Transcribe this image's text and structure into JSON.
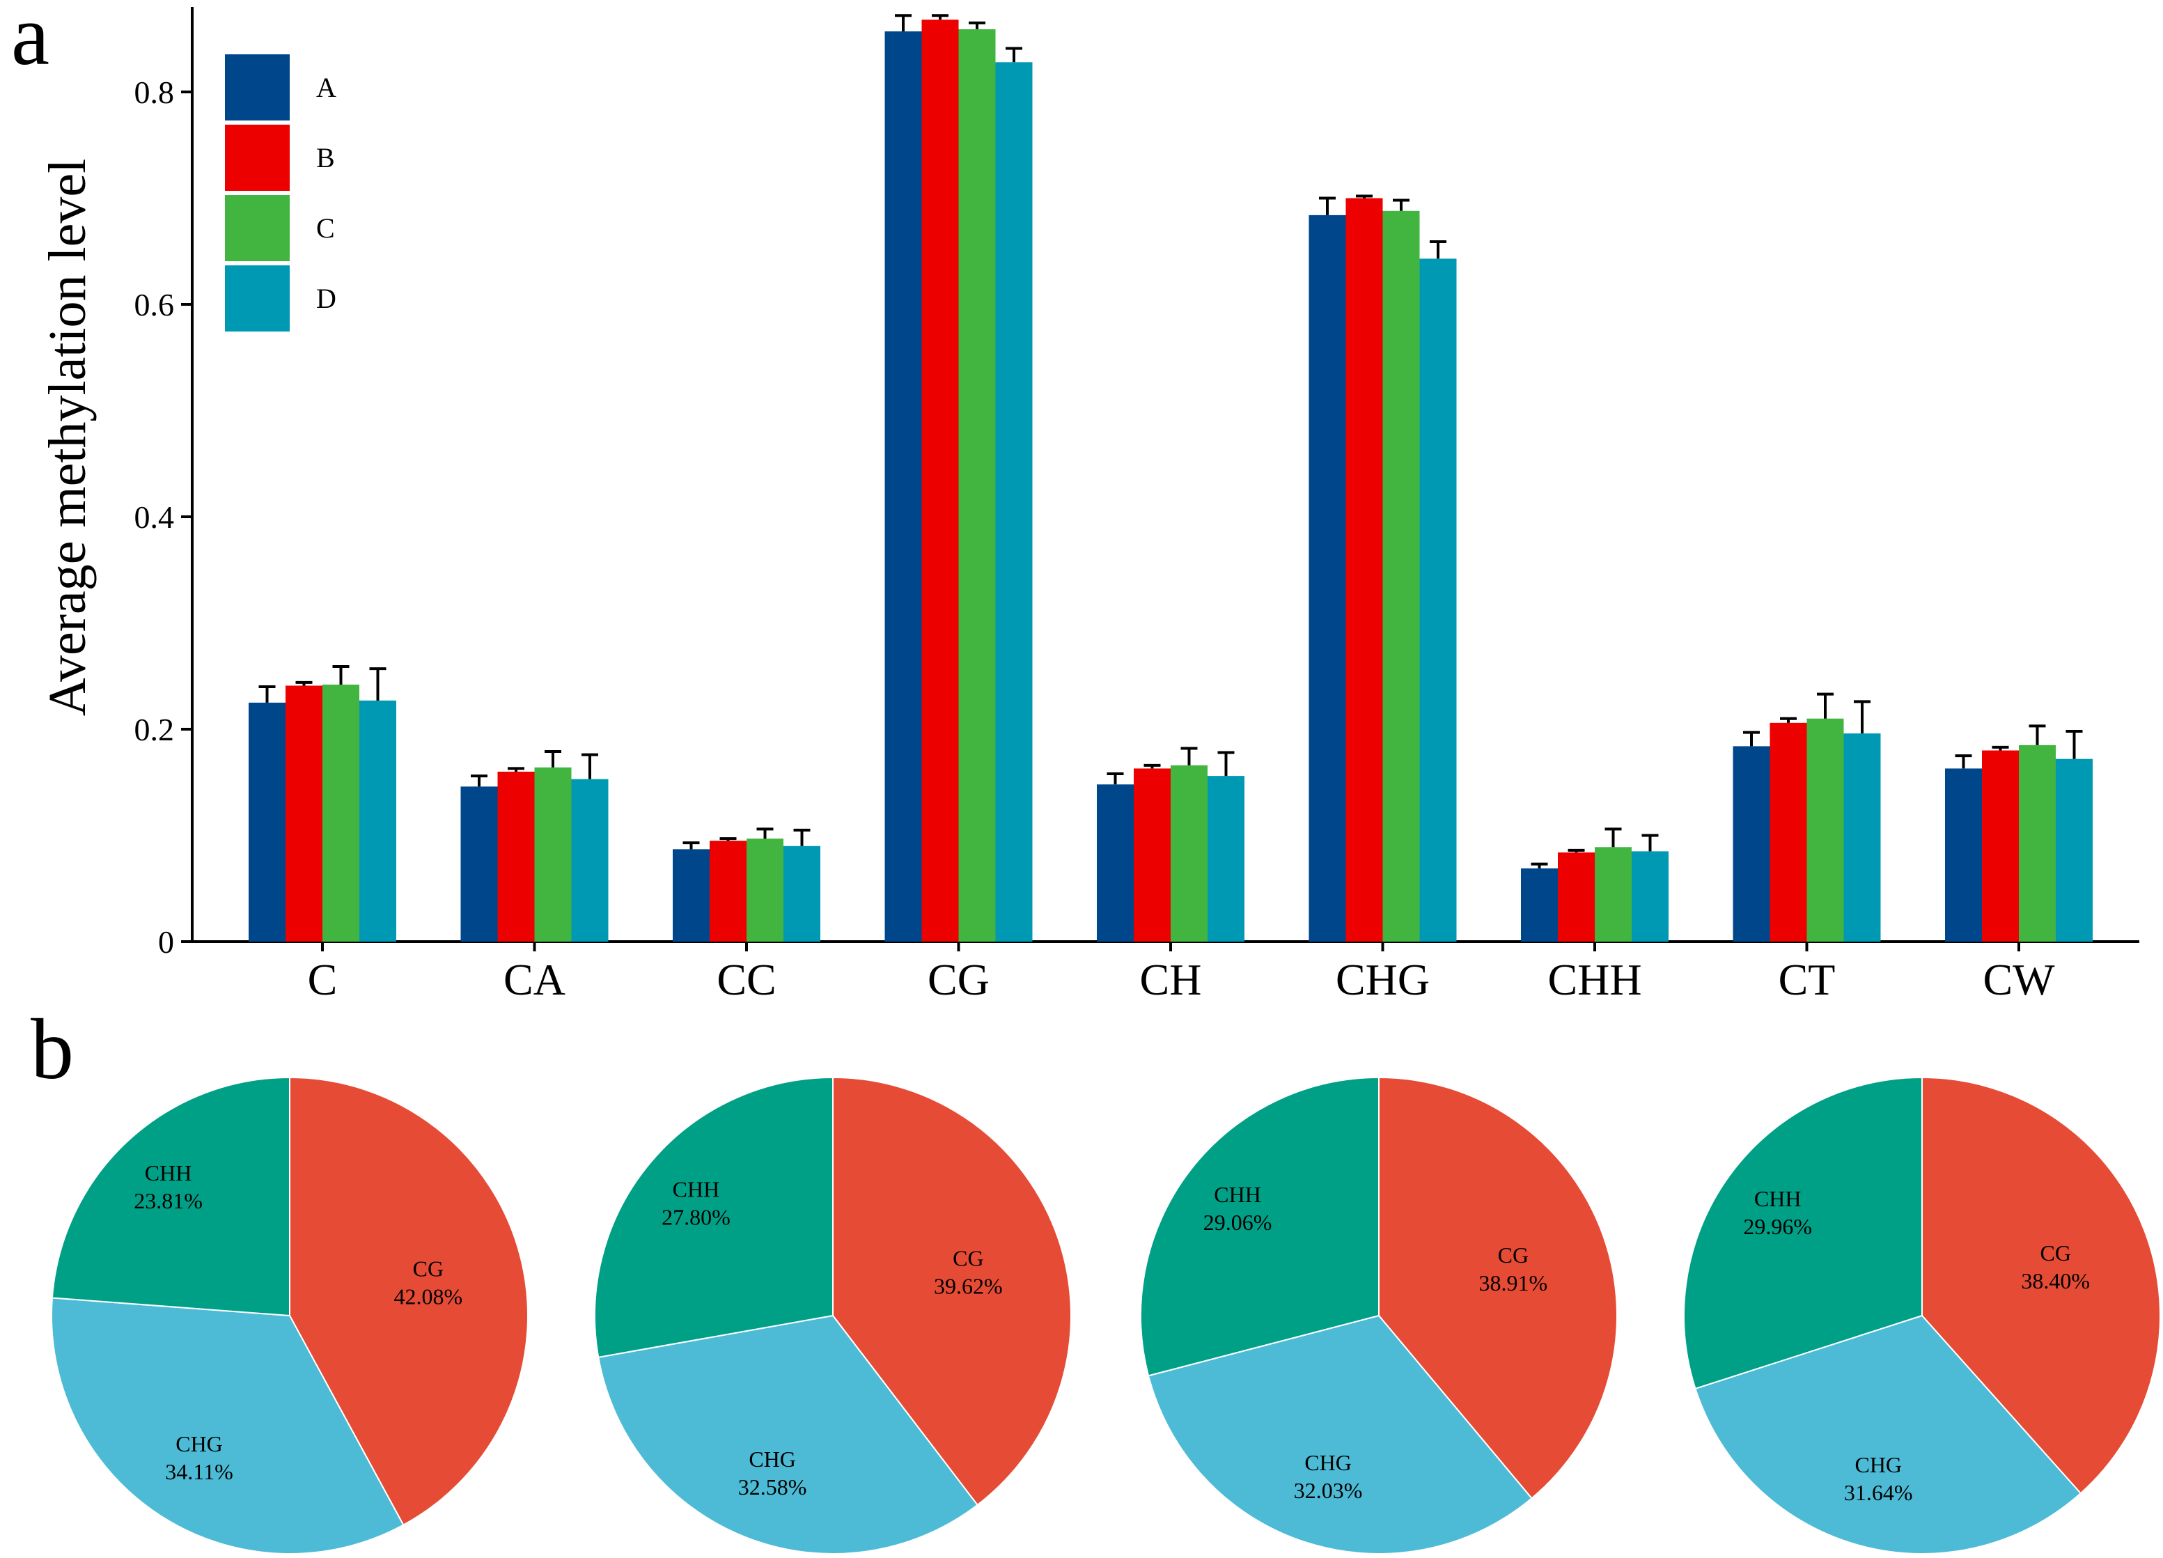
{
  "panel_a": {
    "label": "a",
    "chart_data": {
      "type": "bar",
      "title": "",
      "xlabel": "",
      "ylabel": "Average methylation level",
      "ylim": [
        0,
        0.88
      ],
      "yticks": [
        0,
        0.2,
        0.4,
        0.6,
        0.8
      ],
      "ytick_labels": [
        "0",
        "0.2",
        "0.4",
        "0.6",
        "0.8"
      ],
      "categories": [
        "C",
        "CA",
        "CC",
        "CG",
        "CH",
        "CHG",
        "CHH",
        "CT",
        "CW"
      ],
      "series": [
        {
          "name": "A",
          "color": "#00468b",
          "values": [
            0.225,
            0.146,
            0.087,
            0.857,
            0.148,
            0.684,
            0.069,
            0.184,
            0.163
          ],
          "errors": [
            0.015,
            0.01,
            0.006,
            0.015,
            0.01,
            0.016,
            0.004,
            0.013,
            0.012
          ]
        },
        {
          "name": "B",
          "color": "#ed0000",
          "values": [
            0.241,
            0.16,
            0.095,
            0.868,
            0.163,
            0.7,
            0.084,
            0.206,
            0.18
          ],
          "errors": [
            0.003,
            0.003,
            0.002,
            0.004,
            0.003,
            0.002,
            0.002,
            0.004,
            0.003
          ]
        },
        {
          "name": "C",
          "color": "#42b540",
          "values": [
            0.242,
            0.164,
            0.097,
            0.859,
            0.166,
            0.688,
            0.089,
            0.21,
            0.185
          ],
          "errors": [
            0.017,
            0.015,
            0.009,
            0.006,
            0.016,
            0.01,
            0.017,
            0.023,
            0.018
          ]
        },
        {
          "name": "D",
          "color": "#0099b4",
          "values": [
            0.227,
            0.153,
            0.09,
            0.828,
            0.156,
            0.643,
            0.085,
            0.196,
            0.172
          ],
          "errors": [
            0.03,
            0.023,
            0.015,
            0.013,
            0.022,
            0.016,
            0.015,
            0.03,
            0.026
          ]
        }
      ],
      "legend": {
        "placement": "top-left"
      }
    }
  },
  "panel_b": {
    "label": "b",
    "chart_data": [
      {
        "type": "pie",
        "slices": [
          {
            "name": "CG",
            "value": 42.08,
            "label": "42.08%",
            "color": "#e64b35"
          },
          {
            "name": "CHG",
            "value": 34.11,
            "label": "34.11%",
            "color": "#4dbbd5"
          },
          {
            "name": "CHH",
            "value": 23.81,
            "label": "23.81%",
            "color": "#00a087"
          }
        ]
      },
      {
        "type": "pie",
        "slices": [
          {
            "name": "CG",
            "value": 39.62,
            "label": "39.62%",
            "color": "#e64b35"
          },
          {
            "name": "CHG",
            "value": 32.58,
            "label": "32.58%",
            "color": "#4dbbd5"
          },
          {
            "name": "CHH",
            "value": 27.8,
            "label": "27.80%",
            "color": "#00a087"
          }
        ]
      },
      {
        "type": "pie",
        "slices": [
          {
            "name": "CG",
            "value": 38.91,
            "label": "38.91%",
            "color": "#e64b35"
          },
          {
            "name": "CHG",
            "value": 32.03,
            "label": "32.03%",
            "color": "#4dbbd5"
          },
          {
            "name": "CHH",
            "value": 29.06,
            "label": "29.06%",
            "color": "#00a087"
          }
        ]
      },
      {
        "type": "pie",
        "slices": [
          {
            "name": "CG",
            "value": 38.4,
            "label": "38.40%",
            "color": "#e64b35"
          },
          {
            "name": "CHG",
            "value": 31.64,
            "label": "31.64%",
            "color": "#4dbbd5"
          },
          {
            "name": "CHH",
            "value": 29.96,
            "label": "29.96%",
            "color": "#00a087"
          }
        ]
      }
    ]
  }
}
